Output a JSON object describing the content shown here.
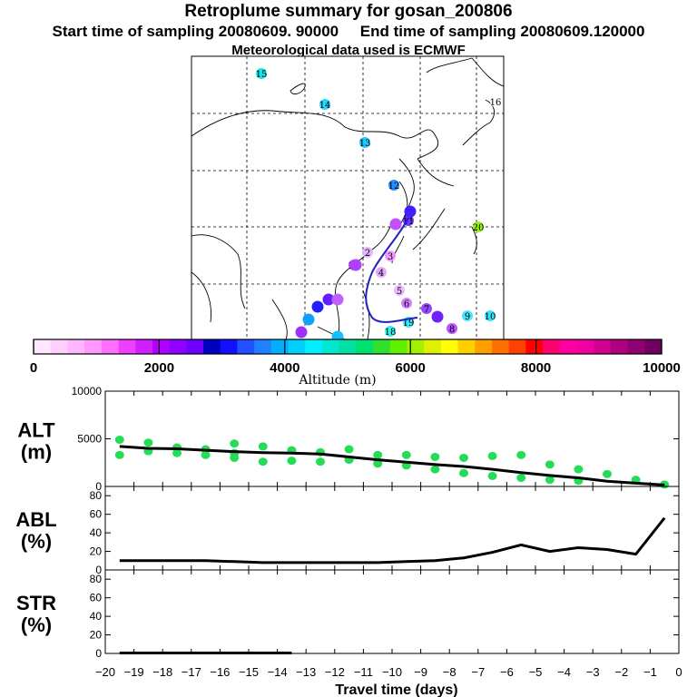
{
  "header": {
    "title": "Retroplume summary for gosan_200806",
    "start_label": "Start time of sampling 20080609. 90000",
    "end_label": "End time of sampling 20080609.120000",
    "met_label": "Meteorological data used is ECMWF"
  },
  "map": {
    "numbered_labels": [
      "2",
      "3",
      "4",
      "5",
      "6",
      "7",
      "8",
      "9",
      "10",
      "11",
      "12",
      "13",
      "14",
      "15",
      "16",
      "17",
      "18",
      "19",
      "20"
    ]
  },
  "colorbar": {
    "tick_labels": [
      "0",
      "2000",
      "4000",
      "6000",
      "8000",
      "10000"
    ],
    "label": "Altitude (m)",
    "colors": [
      "#ffe8ff",
      "#ffd0ff",
      "#ffb8ff",
      "#ff98ff",
      "#ff70ff",
      "#f040ff",
      "#d020ff",
      "#b000ff",
      "#9000ff",
      "#7000ff",
      "#0000c0",
      "#1010ff",
      "#2050ff",
      "#2080ff",
      "#00b0ff",
      "#00d0ff",
      "#00f0ff",
      "#00e8d0",
      "#00e0a0",
      "#00e070",
      "#30e030",
      "#60f000",
      "#a0f000",
      "#e0f000",
      "#ffff00",
      "#ffd000",
      "#ffa000",
      "#ff7000",
      "#ff4000",
      "#ff0000",
      "#ff0070",
      "#ff00a0",
      "#f000a0",
      "#d00090",
      "#b00080",
      "#900070",
      "#700060"
    ]
  },
  "chart_data": [
    {
      "type": "line",
      "panel": "ALT",
      "ylabel": "ALT (m)",
      "ylim": [
        0,
        10000
      ],
      "yticks": [
        "0",
        "5000",
        "10000"
      ],
      "x": [
        -19.5,
        -18.5,
        -17.5,
        -16.5,
        -15.5,
        -14.5,
        -13.5,
        -12.5,
        -11.5,
        -10.5,
        -9.5,
        -8.5,
        -7.5,
        -6.5,
        -5.5,
        -4.5,
        -3.5,
        -2.5,
        -1.5,
        -0.5
      ],
      "median": [
        4200,
        4000,
        3950,
        3800,
        3650,
        3550,
        3500,
        3400,
        3100,
        2800,
        2550,
        2300,
        2100,
        1800,
        1450,
        1150,
        900,
        550,
        350,
        150
      ],
      "scatter_points": [
        [
          -19.5,
          4900
        ],
        [
          -19.5,
          3300
        ],
        [
          -18.5,
          4600
        ],
        [
          -18.5,
          3700
        ],
        [
          -17.5,
          4100
        ],
        [
          -17.5,
          3500
        ],
        [
          -16.5,
          3900
        ],
        [
          -16.5,
          3300
        ],
        [
          -15.5,
          4500
        ],
        [
          -15.5,
          3500
        ],
        [
          -15.5,
          3000
        ],
        [
          -14.5,
          4200
        ],
        [
          -14.5,
          2600
        ],
        [
          -13.5,
          3800
        ],
        [
          -13.5,
          2700
        ],
        [
          -12.5,
          3600
        ],
        [
          -12.5,
          2600
        ],
        [
          -11.5,
          3900
        ],
        [
          -11.5,
          2800
        ],
        [
          -10.5,
          3300
        ],
        [
          -10.5,
          2400
        ],
        [
          -9.5,
          3300
        ],
        [
          -9.5,
          2200
        ],
        [
          -8.5,
          3100
        ],
        [
          -8.5,
          1800
        ],
        [
          -7.5,
          3000
        ],
        [
          -7.5,
          1400
        ],
        [
          -6.5,
          3200
        ],
        [
          -6.5,
          1100
        ],
        [
          -5.5,
          3300
        ],
        [
          -5.5,
          900
        ],
        [
          -4.5,
          2300
        ],
        [
          -4.5,
          700
        ],
        [
          -3.5,
          1800
        ],
        [
          -3.5,
          600
        ],
        [
          -2.5,
          1300
        ],
        [
          -1.5,
          700
        ],
        [
          -0.5,
          200
        ]
      ]
    },
    {
      "type": "line",
      "panel": "ABL",
      "ylabel": "ABL (%)",
      "ylim": [
        0,
        90
      ],
      "yticks": [
        "0",
        "20",
        "40",
        "60",
        "80"
      ],
      "x": [
        -19.5,
        -18.5,
        -17.5,
        -16.5,
        -15.5,
        -14.5,
        -13.5,
        -12.5,
        -11.5,
        -10.5,
        -9.5,
        -8.5,
        -7.5,
        -6.5,
        -5.5,
        -4.5,
        -3.5,
        -2.5,
        -1.5,
        -0.5
      ],
      "values": [
        10,
        10,
        10,
        10,
        9,
        8,
        8,
        8,
        8,
        8,
        9,
        10,
        13,
        19,
        27,
        20,
        24,
        22,
        17,
        56
      ]
    },
    {
      "type": "line",
      "panel": "STR",
      "ylabel": "STR (%)",
      "ylim": [
        0,
        90
      ],
      "yticks": [
        "0",
        "20",
        "40",
        "60",
        "80"
      ],
      "x": [
        -19.5,
        -18.5,
        -17.5,
        -16.5,
        -15.5,
        -14.5,
        -13.5
      ],
      "values": [
        0.5,
        0.5,
        0.5,
        0.5,
        0.5,
        0.5,
        0.5
      ]
    }
  ],
  "x_axis": {
    "xlabel": "Travel time (days)",
    "ticks": [
      "−20",
      "−19",
      "−18",
      "−17",
      "−16",
      "−15",
      "−14",
      "−13",
      "−12",
      "−11",
      "−10",
      "−9",
      "−8",
      "−7",
      "−6",
      "−5",
      "−4",
      "−3",
      "−2",
      "−1",
      "0"
    ]
  },
  "panel_labels": {
    "alt": [
      "ALT",
      "(m)"
    ],
    "abl": [
      "ABL",
      "(%)"
    ],
    "str": [
      "STR",
      "(%)"
    ]
  }
}
